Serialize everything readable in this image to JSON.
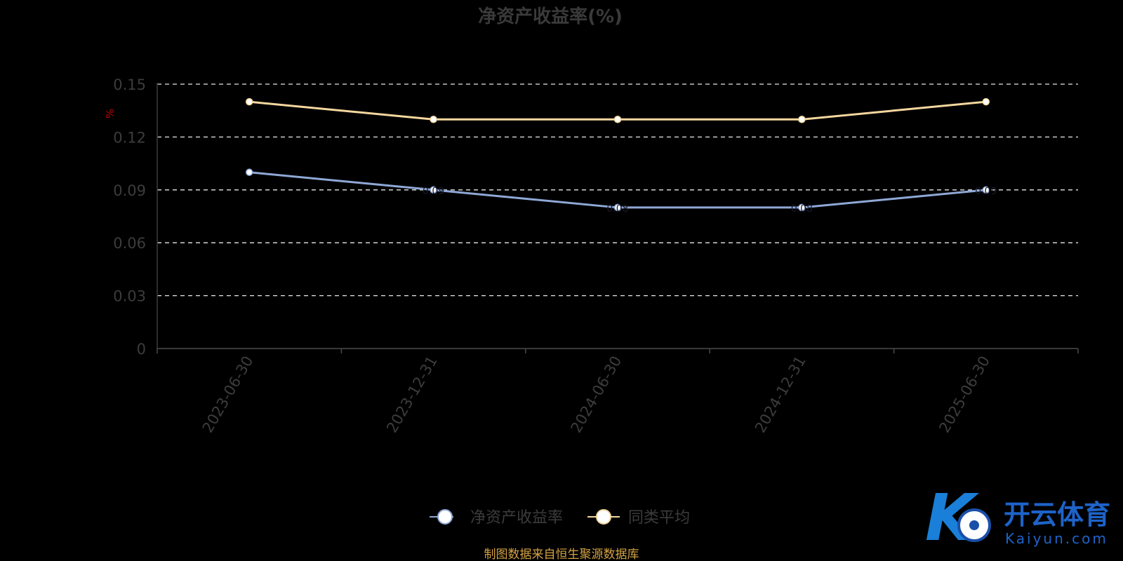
{
  "chart_data": {
    "type": "line",
    "title": "净资产收益率(%)",
    "unit_label": "%",
    "x": [
      "2023-06-30",
      "2023-12-31",
      "2024-06-30",
      "2024-12-31",
      "2025-06-30"
    ],
    "y_ticks": [
      "0",
      "0.03",
      "0.06",
      "0.09",
      "0.12",
      "0.15"
    ],
    "ylim": [
      0,
      0.15
    ],
    "grid": true,
    "legend_position": "bottom-center",
    "series": [
      {
        "name": "净资产收益率",
        "values": [
          0.1,
          0.09,
          0.08,
          0.08,
          0.09
        ],
        "color": "#8fa8d6",
        "labels": [
          "0.10",
          "0.09",
          "0.08",
          "0.08",
          "0.09"
        ]
      },
      {
        "name": "同类平均",
        "values": [
          0.14,
          0.13,
          0.13,
          0.13,
          0.14
        ],
        "color": "#f5d79e"
      }
    ]
  },
  "source_note": "制图数据来自恒生聚源数据库",
  "watermark": {
    "cn": "开云体育",
    "en": "Kaiyun.com",
    "mark": "K"
  }
}
